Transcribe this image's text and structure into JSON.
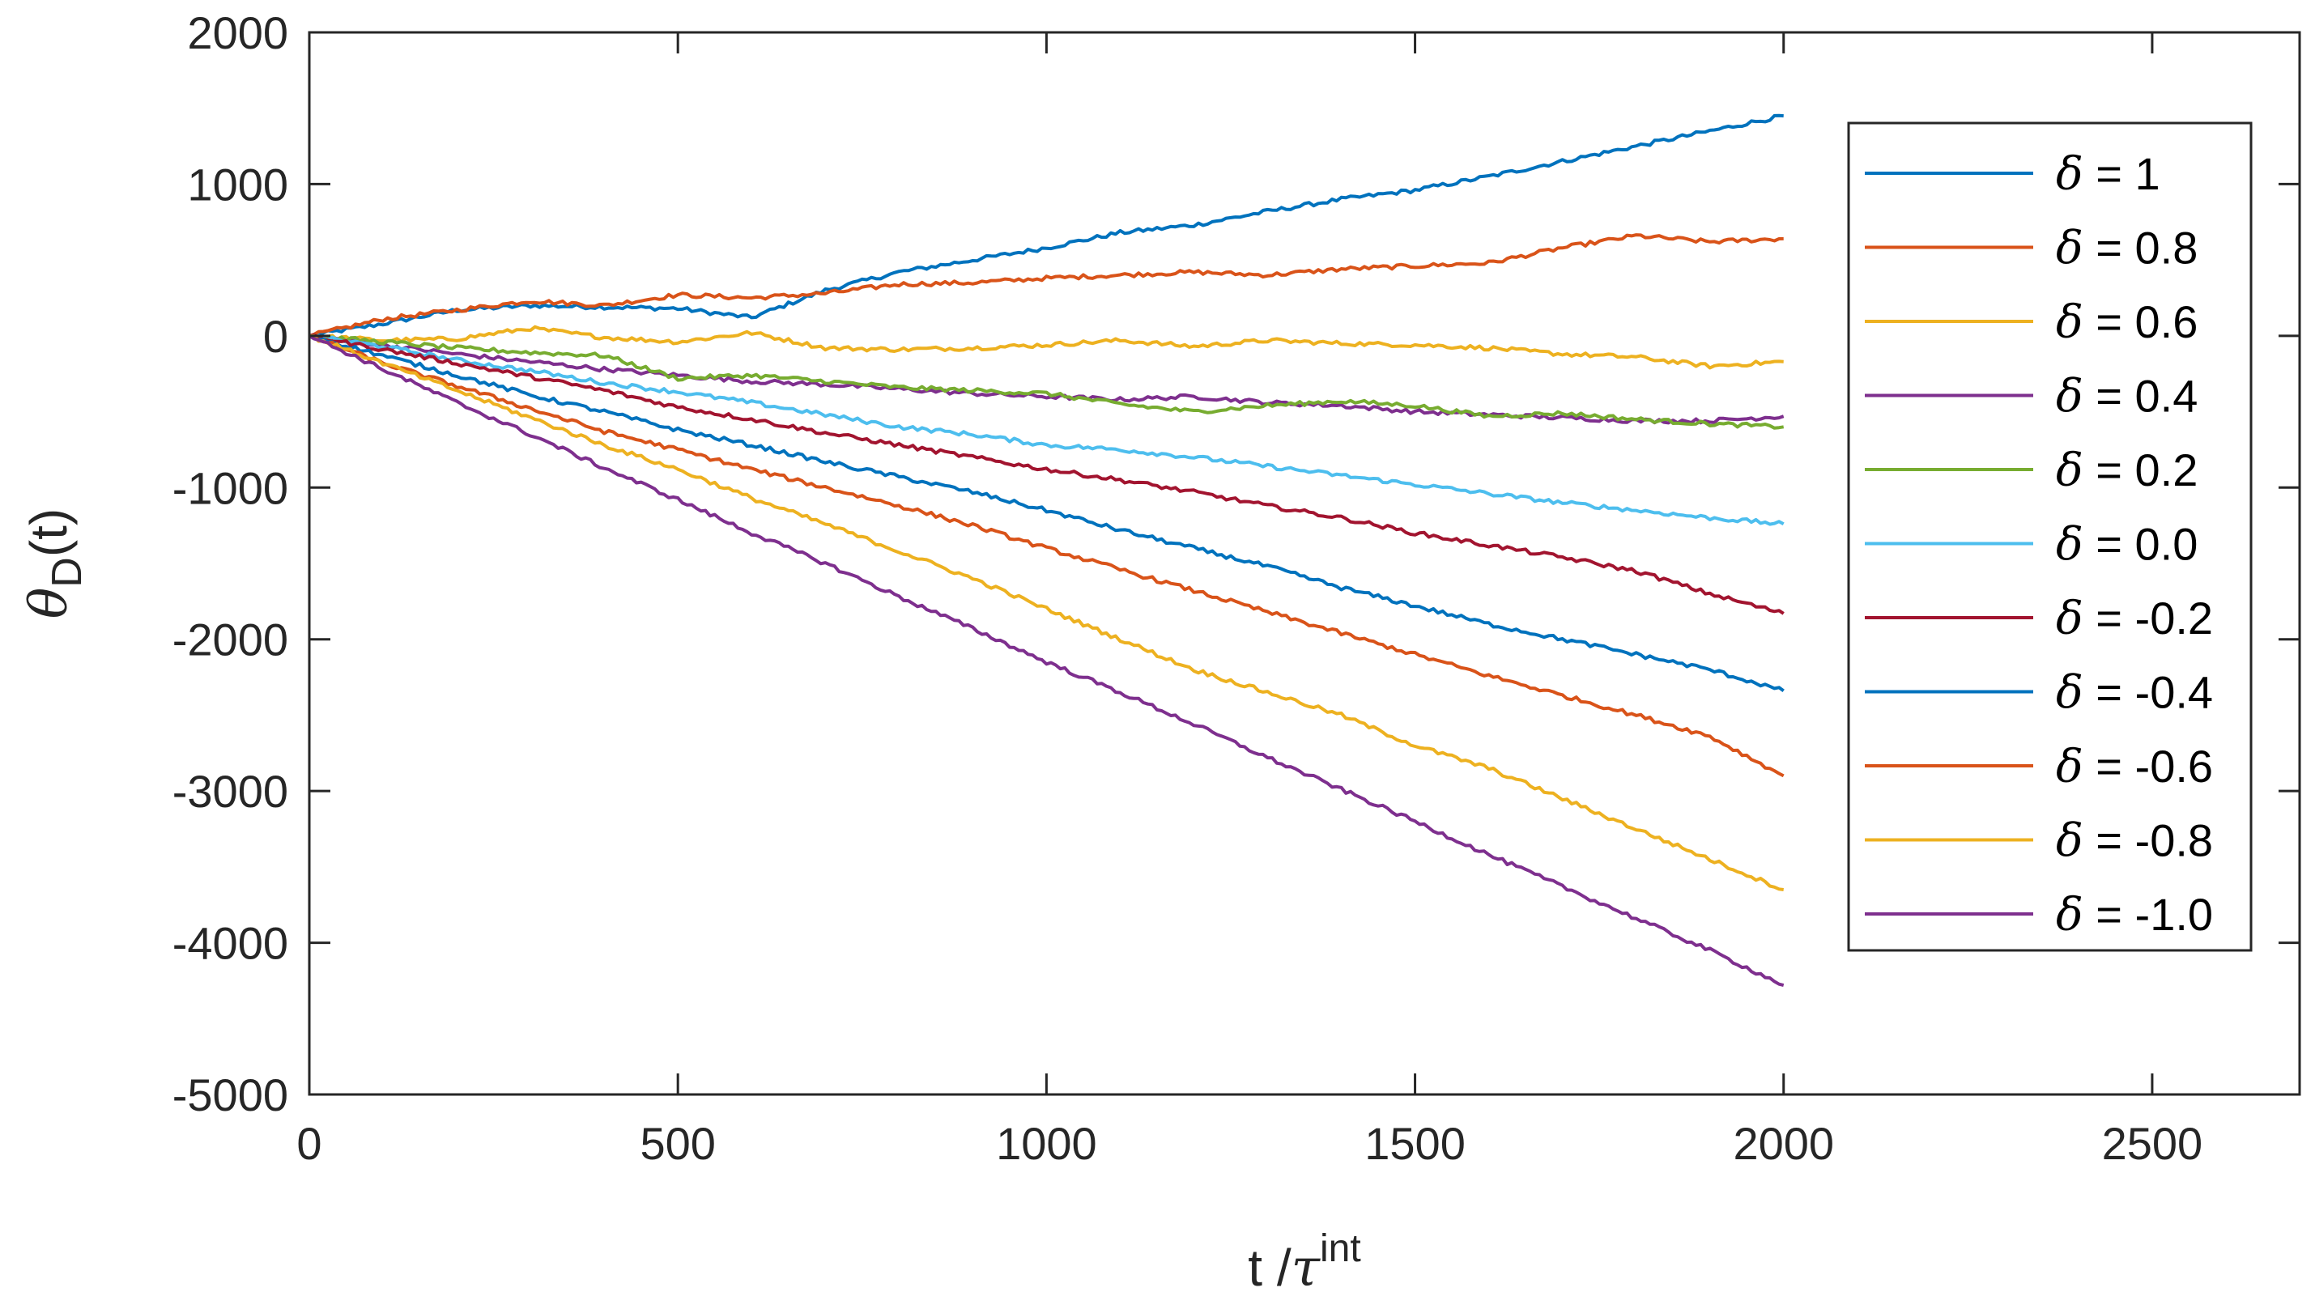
{
  "chart_data": {
    "type": "line",
    "xlabel": {
      "main": "t /",
      "symbol": "τ",
      "superscript": "int"
    },
    "ylabel": {
      "symbol": "θ",
      "subscript": "D",
      "suffix": "(t)"
    },
    "xlim": [
      0,
      2700
    ],
    "ylim": [
      -5000,
      2000
    ],
    "xticks": [
      0,
      500,
      1000,
      1500,
      2000,
      2500
    ],
    "yticks": [
      2000,
      1000,
      0,
      -1000,
      -2000,
      -3000,
      -4000,
      -5000
    ],
    "xtick_labels": [
      "0",
      "500",
      "1000",
      "1500",
      "2000",
      "2500"
    ],
    "ytick_labels": [
      "2000",
      "1000",
      "0",
      "-1000",
      "-2000",
      "-3000",
      "-4000",
      "-5000"
    ],
    "grid": false,
    "legend_position": "top-right",
    "x": [
      0,
      100,
      200,
      300,
      400,
      500,
      600,
      700,
      800,
      900,
      1000,
      1100,
      1200,
      1300,
      1400,
      1500,
      1600,
      1700,
      1800,
      1900,
      2000
    ],
    "series": [
      {
        "symbol": "δ",
        "label": " = 1",
        "color": "#0072BD",
        "values": [
          0,
          80,
          170,
          200,
          190,
          180,
          120,
          300,
          420,
          500,
          580,
          680,
          730,
          820,
          900,
          960,
          1050,
          1150,
          1250,
          1350,
          1450
        ]
      },
      {
        "symbol": "δ",
        "label": " = 0.8",
        "color": "#D95319",
        "values": [
          0,
          110,
          170,
          230,
          200,
          270,
          250,
          280,
          340,
          350,
          380,
          400,
          420,
          400,
          440,
          460,
          480,
          580,
          660,
          620,
          640
        ]
      },
      {
        "symbol": "δ",
        "label": " = 0.6",
        "color": "#EDB120",
        "values": [
          0,
          -30,
          -20,
          50,
          -10,
          -40,
          20,
          -80,
          -90,
          -80,
          -60,
          -30,
          -70,
          -30,
          -50,
          -60,
          -80,
          -120,
          -140,
          -200,
          -170
        ]
      },
      {
        "symbol": "δ",
        "label": " = 0.4",
        "color": "#7E2F8E",
        "values": [
          0,
          -60,
          -120,
          -170,
          -220,
          -260,
          -300,
          -320,
          -350,
          -380,
          -400,
          -420,
          -400,
          -440,
          -460,
          -500,
          -520,
          -540,
          -560,
          -560,
          -530
        ]
      },
      {
        "symbol": "δ",
        "label": " = 0.2",
        "color": "#77AC30",
        "values": [
          0,
          -40,
          -80,
          -110,
          -130,
          -280,
          -260,
          -300,
          -340,
          -360,
          -380,
          -450,
          -500,
          -460,
          -430,
          -460,
          -530,
          -510,
          -550,
          -580,
          -600
        ]
      },
      {
        "symbol": "δ",
        "label": " = 0.0",
        "color": "#4DBEEE",
        "values": [
          0,
          -70,
          -160,
          -230,
          -310,
          -370,
          -440,
          -520,
          -600,
          -650,
          -720,
          -750,
          -800,
          -860,
          -920,
          -980,
          -1040,
          -1100,
          -1150,
          -1200,
          -1240
        ]
      },
      {
        "symbol": "δ",
        "label": " = -0.2",
        "color": "#A2142F",
        "values": [
          0,
          -90,
          -180,
          -270,
          -360,
          -470,
          -550,
          -640,
          -720,
          -800,
          -880,
          -950,
          -1030,
          -1120,
          -1200,
          -1300,
          -1380,
          -1460,
          -1550,
          -1700,
          -1830
        ]
      },
      {
        "symbol": "δ",
        "label": " = -0.4",
        "color": "#0072BD",
        "values": [
          0,
          -130,
          -260,
          -390,
          -500,
          -620,
          -720,
          -830,
          -930,
          -1030,
          -1150,
          -1280,
          -1400,
          -1520,
          -1660,
          -1780,
          -1900,
          -2000,
          -2100,
          -2200,
          -2340
        ]
      },
      {
        "symbol": "δ",
        "label": " = -0.6",
        "color": "#D95319",
        "values": [
          0,
          -180,
          -330,
          -480,
          -630,
          -750,
          -880,
          -1000,
          -1120,
          -1250,
          -1400,
          -1540,
          -1680,
          -1820,
          -1960,
          -2100,
          -2240,
          -2370,
          -2500,
          -2640,
          -2900
        ]
      },
      {
        "symbol": "δ",
        "label": " = -0.8",
        "color": "#EDB120",
        "values": [
          0,
          -180,
          -360,
          -540,
          -720,
          -880,
          -1070,
          -1240,
          -1420,
          -1600,
          -1800,
          -2000,
          -2200,
          -2350,
          -2500,
          -2700,
          -2850,
          -3050,
          -3250,
          -3450,
          -3650
        ]
      },
      {
        "symbol": "δ",
        "label": " = -1.0",
        "color": "#7E2F8E",
        "values": [
          0,
          -220,
          -440,
          -650,
          -870,
          -1080,
          -1300,
          -1500,
          -1720,
          -1930,
          -2150,
          -2350,
          -2560,
          -2780,
          -2990,
          -3200,
          -3420,
          -3630,
          -3840,
          -4050,
          -4280
        ]
      }
    ]
  }
}
